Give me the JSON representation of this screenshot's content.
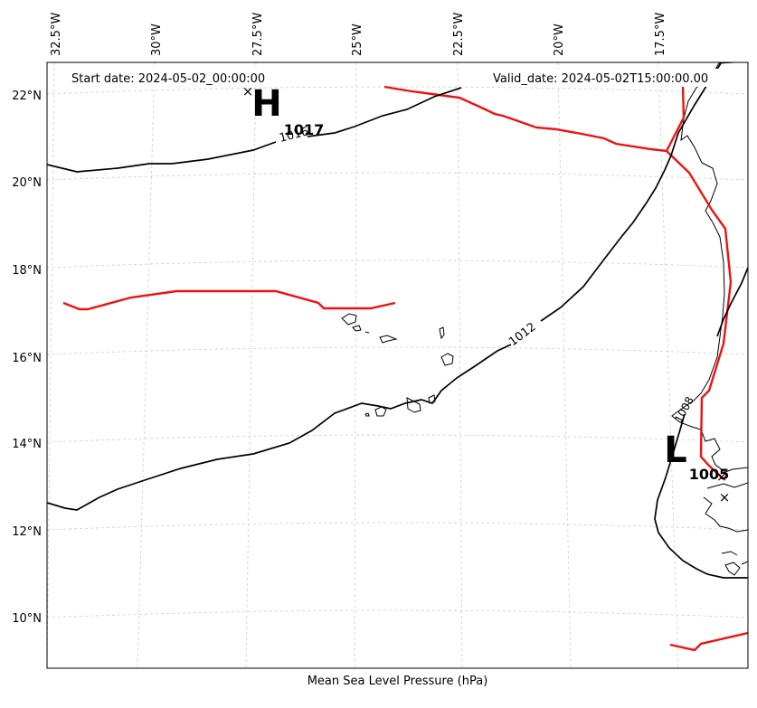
{
  "header": {
    "start_date": "Start date: 2024-05-02_00:00:00",
    "valid_date": "Valid_date: 2024-05-02T15:00:00.00"
  },
  "footer": {
    "caption": "Mean Sea Level Pressure (hPa)"
  },
  "axes": {
    "lon_ticks": [
      "32.5°W",
      "30°W",
      "27.5°W",
      "25°W",
      "22.5°W",
      "20°W",
      "17.5°W"
    ],
    "lat_ticks": [
      "22°N",
      "20°N",
      "18°N",
      "16°N",
      "14°N",
      "12°N",
      "10°N"
    ]
  },
  "chart_data": {
    "type": "map",
    "variable": "Mean Sea Level Pressure (hPa)",
    "contour_labels": [
      "1016",
      "1012",
      "1008"
    ],
    "pressure_centers": [
      {
        "symbol": "H",
        "value": "1017"
      },
      {
        "symbol": "L",
        "value": "1005"
      }
    ],
    "colors": {
      "isobar": "#000000",
      "tracks": "#ee1111",
      "grid": "#cccccc"
    },
    "grid": true
  }
}
